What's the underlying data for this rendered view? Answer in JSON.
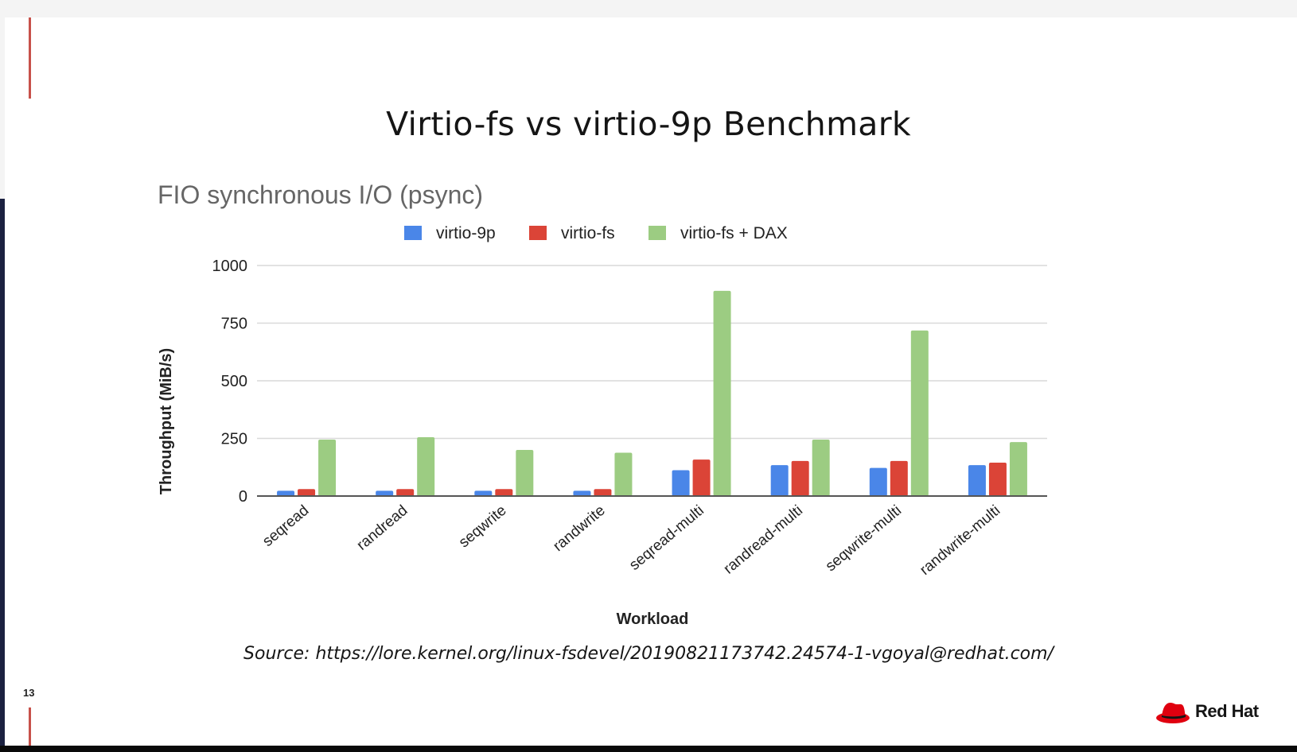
{
  "slide": {
    "title": "Virtio-fs vs virtio-9p Benchmark",
    "source": "Source: https://lore.kernel.org/linux-fsdevel/20190821173742.24574-1-vgoyal@redhat.com/",
    "slide_number": "13",
    "logo_text": "Red Hat",
    "logo_icon": "red-hat-fedora-icon",
    "accent_color": "#c7514a"
  },
  "chart_data": {
    "type": "bar",
    "title": "FIO synchronous I/O (psync)",
    "xlabel": "Workload",
    "ylabel": "Throughput (MiB/s)",
    "ylim": [
      0,
      1000
    ],
    "yticks": [
      0,
      250,
      500,
      750,
      1000
    ],
    "grid": true,
    "legend_position": "top",
    "categories": [
      "seqread",
      "randread",
      "seqwrite",
      "randwrite",
      "seqread-multi",
      "randread-multi",
      "seqwrite-multi",
      "randwrite-multi"
    ],
    "series": [
      {
        "name": "virtio-9p",
        "color": "#4a86e8",
        "values": [
          23,
          23,
          23,
          23,
          112,
          134,
          122,
          134
        ]
      },
      {
        "name": "virtio-fs",
        "color": "#db4437",
        "values": [
          30,
          30,
          30,
          30,
          158,
          152,
          152,
          145
        ]
      },
      {
        "name": "virtio-fs + DAX",
        "color": "#9ccc82",
        "values": [
          245,
          255,
          200,
          188,
          890,
          245,
          718,
          234
        ]
      }
    ]
  }
}
